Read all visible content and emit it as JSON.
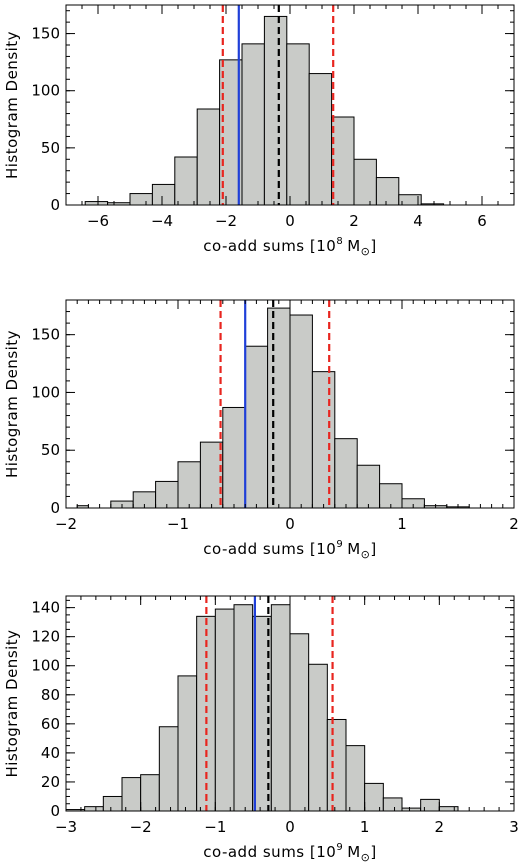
{
  "chart_data": [
    {
      "type": "bar",
      "subtype": "histogram",
      "xlabel_text": "co-add sums [10",
      "xlabel_exp": "8",
      "xlabel_unit": "M",
      "xlabel_sub": "⊙",
      "xlabel_close": "]",
      "ylabel": "Histogram Density",
      "xlim": [
        -7,
        7
      ],
      "ylim": [
        0,
        175
      ],
      "xticks": [
        -6,
        -4,
        -2,
        0,
        2,
        4,
        6
      ],
      "xtick_labels": [
        "−6",
        "−4",
        "−2",
        "0",
        "2",
        "4",
        "6"
      ],
      "xminor_step": 0.5,
      "yticks": [
        0,
        50,
        100,
        150
      ],
      "ytick_labels": [
        "0",
        "50",
        "100",
        "150"
      ],
      "yminor_step": 10,
      "bin_edges": [
        -6.4,
        -5.7,
        -5.0,
        -4.3,
        -3.6,
        -2.9,
        -2.2,
        -1.5,
        -0.8,
        -0.1,
        0.6,
        1.3,
        2.0,
        2.7,
        3.4,
        4.1,
        4.8,
        5.5
      ],
      "counts": [
        3,
        2,
        10,
        18,
        42,
        84,
        127,
        141,
        165,
        141,
        115,
        77,
        40,
        24,
        9,
        1,
        0
      ],
      "markers": [
        {
          "x": -2.1,
          "color": "#e8251f",
          "style": "dashed"
        },
        {
          "x": 1.35,
          "color": "#e8251f",
          "style": "dashed"
        },
        {
          "x": -1.6,
          "color": "#1f3fd8",
          "style": "solid"
        },
        {
          "x": -0.35,
          "color": "#000000",
          "style": "dashed"
        }
      ]
    },
    {
      "type": "bar",
      "subtype": "histogram",
      "xlabel_text": "co-add sums [10",
      "xlabel_exp": "9",
      "xlabel_unit": "M",
      "xlabel_sub": "⊙",
      "xlabel_close": "]",
      "ylabel": "Histogram Density",
      "xlim": [
        -2,
        2
      ],
      "ylim": [
        0,
        180
      ],
      "xticks": [
        -2,
        -1,
        0,
        1,
        2
      ],
      "xtick_labels": [
        "−2",
        "−1",
        "0",
        "1",
        "2"
      ],
      "xminor_step": 0.1,
      "yticks": [
        0,
        50,
        100,
        150
      ],
      "ytick_labels": [
        "0",
        "50",
        "100",
        "150"
      ],
      "yminor_step": 10,
      "bin_edges": [
        -1.9,
        -1.8,
        -1.7,
        -1.6,
        -1.5,
        -1.4,
        -1.3,
        -1.2,
        -1.1,
        -1.0,
        -0.9,
        -0.8,
        -0.7,
        -0.6,
        -0.5,
        -0.4,
        -0.3,
        -0.2,
        -0.1,
        0.0,
        0.1,
        0.2,
        0.3,
        0.4,
        0.5,
        0.6,
        0.7,
        0.8,
        0.9,
        1.0,
        1.1,
        1.2,
        1.3,
        1.4,
        1.5,
        1.6
      ],
      "counts_coarse": {
        "edges": [
          -1.9,
          -1.8,
          -1.6,
          -1.4,
          -1.2,
          -1.0,
          -0.8,
          -0.6,
          -0.4,
          -0.2,
          0.0,
          0.2,
          0.4,
          0.6,
          0.8,
          1.0,
          1.2,
          1.4,
          1.6
        ],
        "counts": [
          2,
          0,
          6,
          14,
          23,
          40,
          57,
          87,
          140,
          173,
          167,
          118,
          60,
          37,
          21,
          8,
          2,
          1
        ]
      },
      "markers": [
        {
          "x": -0.62,
          "color": "#e8251f",
          "style": "dashed"
        },
        {
          "x": 0.35,
          "color": "#e8251f",
          "style": "dashed"
        },
        {
          "x": -0.4,
          "color": "#1f3fd8",
          "style": "solid"
        },
        {
          "x": -0.15,
          "color": "#000000",
          "style": "dashed"
        }
      ]
    },
    {
      "type": "bar",
      "subtype": "histogram",
      "xlabel_text": "co-add sums [10",
      "xlabel_exp": "9",
      "xlabel_unit": "M",
      "xlabel_sub": "⊙",
      "xlabel_close": "]",
      "ylabel": "Histogram Density",
      "xlim": [
        -3,
        3
      ],
      "ylim": [
        0,
        148
      ],
      "xticks": [
        -3,
        -2,
        -1,
        0,
        1,
        2,
        3
      ],
      "xtick_labels": [
        "−3",
        "−2",
        "−1",
        "0",
        "1",
        "2",
        "3"
      ],
      "xminor_step": 0.2,
      "yticks": [
        0,
        20,
        40,
        60,
        80,
        100,
        120,
        140
      ],
      "ytick_labels": [
        "0",
        "20",
        "40",
        "60",
        "80",
        "100",
        "120",
        "140"
      ],
      "yminor_step": 5,
      "counts_coarse": {
        "edges": [
          -3.0,
          -2.75,
          -2.5,
          -2.25,
          -2.0,
          -1.75,
          -1.5,
          -1.25,
          -1.0,
          -0.75,
          -0.5,
          -0.25,
          0.0,
          0.25,
          0.5,
          0.75,
          1.0,
          1.25,
          1.5,
          1.75,
          2.0,
          2.25,
          2.5
        ],
        "counts": [
          1,
          3,
          10,
          23,
          25,
          58,
          93,
          134,
          139,
          142,
          134,
          142,
          122,
          101,
          63,
          45,
          19,
          9,
          2,
          8,
          3,
          0
        ]
      },
      "markers": [
        {
          "x": -1.12,
          "color": "#e8251f",
          "style": "dashed"
        },
        {
          "x": 0.57,
          "color": "#e8251f",
          "style": "dashed"
        },
        {
          "x": -0.47,
          "color": "#1f3fd8",
          "style": "solid"
        },
        {
          "x": -0.29,
          "color": "#000000",
          "style": "dashed"
        }
      ]
    }
  ]
}
